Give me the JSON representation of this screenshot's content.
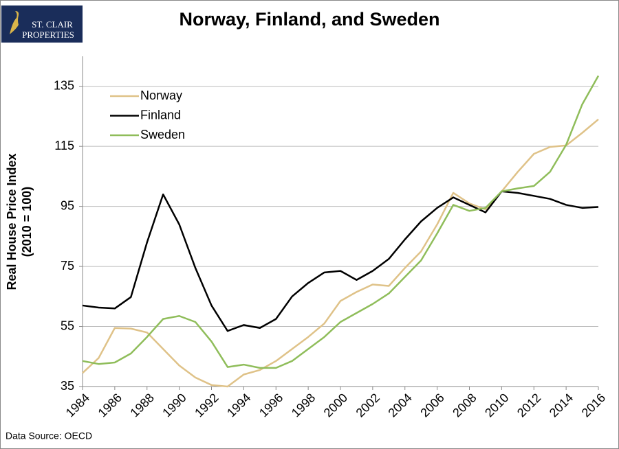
{
  "logo": {
    "line1": "ST. CLAIR",
    "line2": "PROPERTIES"
  },
  "footer": "Data Source: OECD",
  "chart_data": {
    "type": "line",
    "title": "Norway, Finland, and Sweden",
    "ylabel": "Real House Price Index",
    "ylabel_note": "(2010 = 100)",
    "x": [
      1984,
      1985,
      1986,
      1987,
      1988,
      1989,
      1990,
      1991,
      1992,
      1993,
      1994,
      1995,
      1996,
      1997,
      1998,
      1999,
      2000,
      2001,
      2002,
      2003,
      2004,
      2005,
      2006,
      2007,
      2008,
      2009,
      2010,
      2011,
      2012,
      2013,
      2014,
      2015,
      2016
    ],
    "xlim": [
      1984,
      2016
    ],
    "xticks": [
      1984,
      1986,
      1988,
      1990,
      1992,
      1994,
      1996,
      1998,
      2000,
      2002,
      2004,
      2006,
      2008,
      2010,
      2012,
      2014,
      2016
    ],
    "ylim": [
      35,
      145
    ],
    "yticks": [
      35,
      55,
      75,
      95,
      115,
      135
    ],
    "grid": true,
    "legend": "top-left",
    "series": [
      {
        "name": "Norway",
        "color": "#dfc288",
        "values": [
          39.5,
          44.5,
          54.5,
          54.3,
          53,
          47.5,
          42,
          38,
          35.5,
          35,
          39,
          40.5,
          43.5,
          47.5,
          51.5,
          56,
          63.5,
          66.5,
          69,
          68.5,
          74.5,
          80,
          89,
          99.5,
          96,
          94,
          100,
          106.5,
          112.5,
          114.8,
          115.3,
          119.5,
          124
        ]
      },
      {
        "name": "Finland",
        "color": "#000000",
        "values": [
          62,
          61.3,
          61,
          64.8,
          83,
          99,
          89,
          74.5,
          62,
          53.5,
          55.5,
          54.5,
          57.5,
          65,
          69.5,
          73,
          73.5,
          70.5,
          73.5,
          77.5,
          84,
          90,
          94.5,
          98,
          95.5,
          93,
          100,
          99.5,
          98.5,
          97.5,
          95.5,
          94.5,
          94.8
        ]
      },
      {
        "name": "Sweden",
        "color": "#8fbd5a",
        "values": [
          43.5,
          42.5,
          43,
          46,
          51.5,
          57.5,
          58.5,
          56.5,
          50,
          41.5,
          42.3,
          41.2,
          41.2,
          43.5,
          47.5,
          51.5,
          56.5,
          59.5,
          62.5,
          66,
          71.5,
          77,
          86,
          95.5,
          93.5,
          94.5,
          100,
          101,
          101.8,
          106.5,
          115.5,
          129,
          138.5
        ]
      }
    ]
  }
}
